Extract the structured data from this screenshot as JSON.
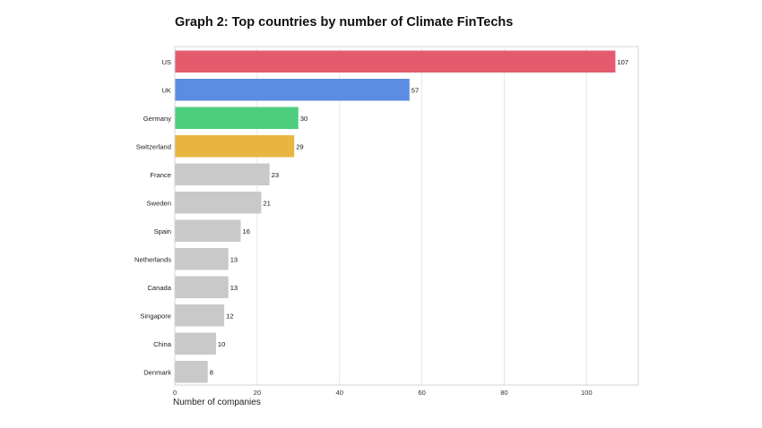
{
  "chart_data": {
    "type": "bar",
    "orientation": "horizontal",
    "title": "Graph 2: Top countries by number of Climate FinTechs",
    "xlabel": "Number of companies",
    "ylabel": "",
    "categories": [
      "US",
      "UK",
      "Germany",
      "Switzerland",
      "France",
      "Sweden",
      "Spain",
      "Netherlands",
      "Canada",
      "Singapore",
      "China",
      "Denmark"
    ],
    "values": [
      107,
      57,
      30,
      29,
      23,
      21,
      16,
      13,
      13,
      12,
      10,
      8
    ],
    "bar_colors": [
      "#e35b6c",
      "#5b8de3",
      "#4ccd7e",
      "#e8b63f",
      "#c9c9c9",
      "#c9c9c9",
      "#c9c9c9",
      "#c9c9c9",
      "#c9c9c9",
      "#c9c9c9",
      "#c9c9c9",
      "#c9c9c9"
    ],
    "xlim": [
      0,
      112
    ],
    "xticks": [
      0,
      20,
      40,
      60,
      80,
      100
    ],
    "grid": "vertical",
    "legend": "none"
  }
}
